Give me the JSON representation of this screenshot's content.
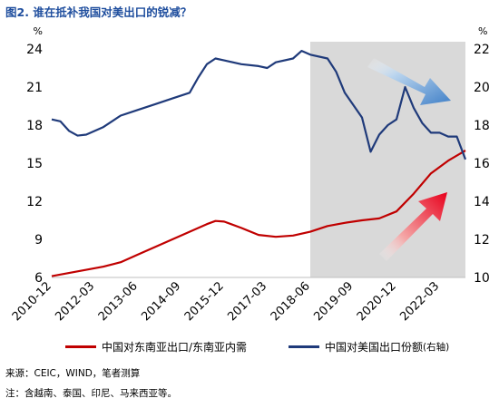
{
  "title": "图2. 谁在抵补我国对美出口的锐减？",
  "chart_data": {
    "type": "line",
    "left_unit": "%",
    "right_unit": "%",
    "x_ticks": [
      "2010-12",
      "2012-03",
      "2013-06",
      "2014-09",
      "2015-12",
      "2017-03",
      "2018-06",
      "2019-09",
      "2020-12",
      "2022-03"
    ],
    "y_left": {
      "min": 6,
      "max": 24,
      "ticks": [
        6,
        9,
        12,
        15,
        18,
        21,
        24
      ]
    },
    "y_right": {
      "min": 10,
      "max": 22,
      "ticks": [
        10,
        12,
        14,
        16,
        18,
        20,
        22
      ]
    },
    "shaded_region": {
      "start": "2018-06",
      "end": "2022-12"
    },
    "series": [
      {
        "name": "中国对东南亚出口/东南亚内需",
        "axis": "left",
        "color": "#c00000",
        "points": [
          [
            "2010-12",
            6.1
          ],
          [
            "2011-06",
            6.35
          ],
          [
            "2011-12",
            6.6
          ],
          [
            "2012-06",
            6.85
          ],
          [
            "2012-12",
            7.2
          ],
          [
            "2013-06",
            7.8
          ],
          [
            "2013-12",
            8.4
          ],
          [
            "2014-06",
            9.0
          ],
          [
            "2014-12",
            9.6
          ],
          [
            "2015-06",
            10.2
          ],
          [
            "2015-09",
            10.45
          ],
          [
            "2015-12",
            10.4
          ],
          [
            "2016-06",
            9.9
          ],
          [
            "2016-12",
            9.35
          ],
          [
            "2017-06",
            9.2
          ],
          [
            "2017-12",
            9.3
          ],
          [
            "2018-06",
            9.6
          ],
          [
            "2018-12",
            10.05
          ],
          [
            "2019-06",
            10.3
          ],
          [
            "2019-12",
            10.5
          ],
          [
            "2020-06",
            10.65
          ],
          [
            "2020-12",
            11.2
          ],
          [
            "2021-06",
            12.6
          ],
          [
            "2021-12",
            14.2
          ],
          [
            "2022-06",
            15.2
          ],
          [
            "2022-12",
            16.0
          ]
        ]
      },
      {
        "name": "中国对美国出口份额",
        "name_suffix": "(右轴)",
        "axis": "right",
        "color": "#1f3a7a",
        "points": [
          [
            "2010-12",
            18.3
          ],
          [
            "2011-03",
            18.2
          ],
          [
            "2011-06",
            17.7
          ],
          [
            "2011-09",
            17.45
          ],
          [
            "2011-12",
            17.5
          ],
          [
            "2012-06",
            17.9
          ],
          [
            "2012-12",
            18.5
          ],
          [
            "2013-06",
            18.8
          ],
          [
            "2013-12",
            19.1
          ],
          [
            "2014-06",
            19.4
          ],
          [
            "2014-12",
            19.7
          ],
          [
            "2015-03",
            20.5
          ],
          [
            "2015-06",
            21.2
          ],
          [
            "2015-09",
            21.5
          ],
          [
            "2015-12",
            21.4
          ],
          [
            "2016-06",
            21.2
          ],
          [
            "2016-12",
            21.1
          ],
          [
            "2017-03",
            21.0
          ],
          [
            "2017-06",
            21.3
          ],
          [
            "2017-12",
            21.5
          ],
          [
            "2018-03",
            21.9
          ],
          [
            "2018-06",
            21.7
          ],
          [
            "2018-12",
            21.5
          ],
          [
            "2019-03",
            20.8
          ],
          [
            "2019-06",
            19.7
          ],
          [
            "2019-12",
            18.4
          ],
          [
            "2020-03",
            16.6
          ],
          [
            "2020-06",
            17.5
          ],
          [
            "2020-09",
            18.0
          ],
          [
            "2020-12",
            18.3
          ],
          [
            "2021-03",
            20.0
          ],
          [
            "2021-06",
            18.9
          ],
          [
            "2021-09",
            18.1
          ],
          [
            "2021-12",
            17.6
          ],
          [
            "2022-03",
            17.6
          ],
          [
            "2022-06",
            17.4
          ],
          [
            "2022-09",
            17.4
          ],
          [
            "2022-12",
            16.2
          ]
        ]
      }
    ]
  },
  "footer": {
    "source": "来源：CEIC，WIND，笔者测算",
    "note": "注：含越南、泰国、印尼、马来西亚等。"
  }
}
